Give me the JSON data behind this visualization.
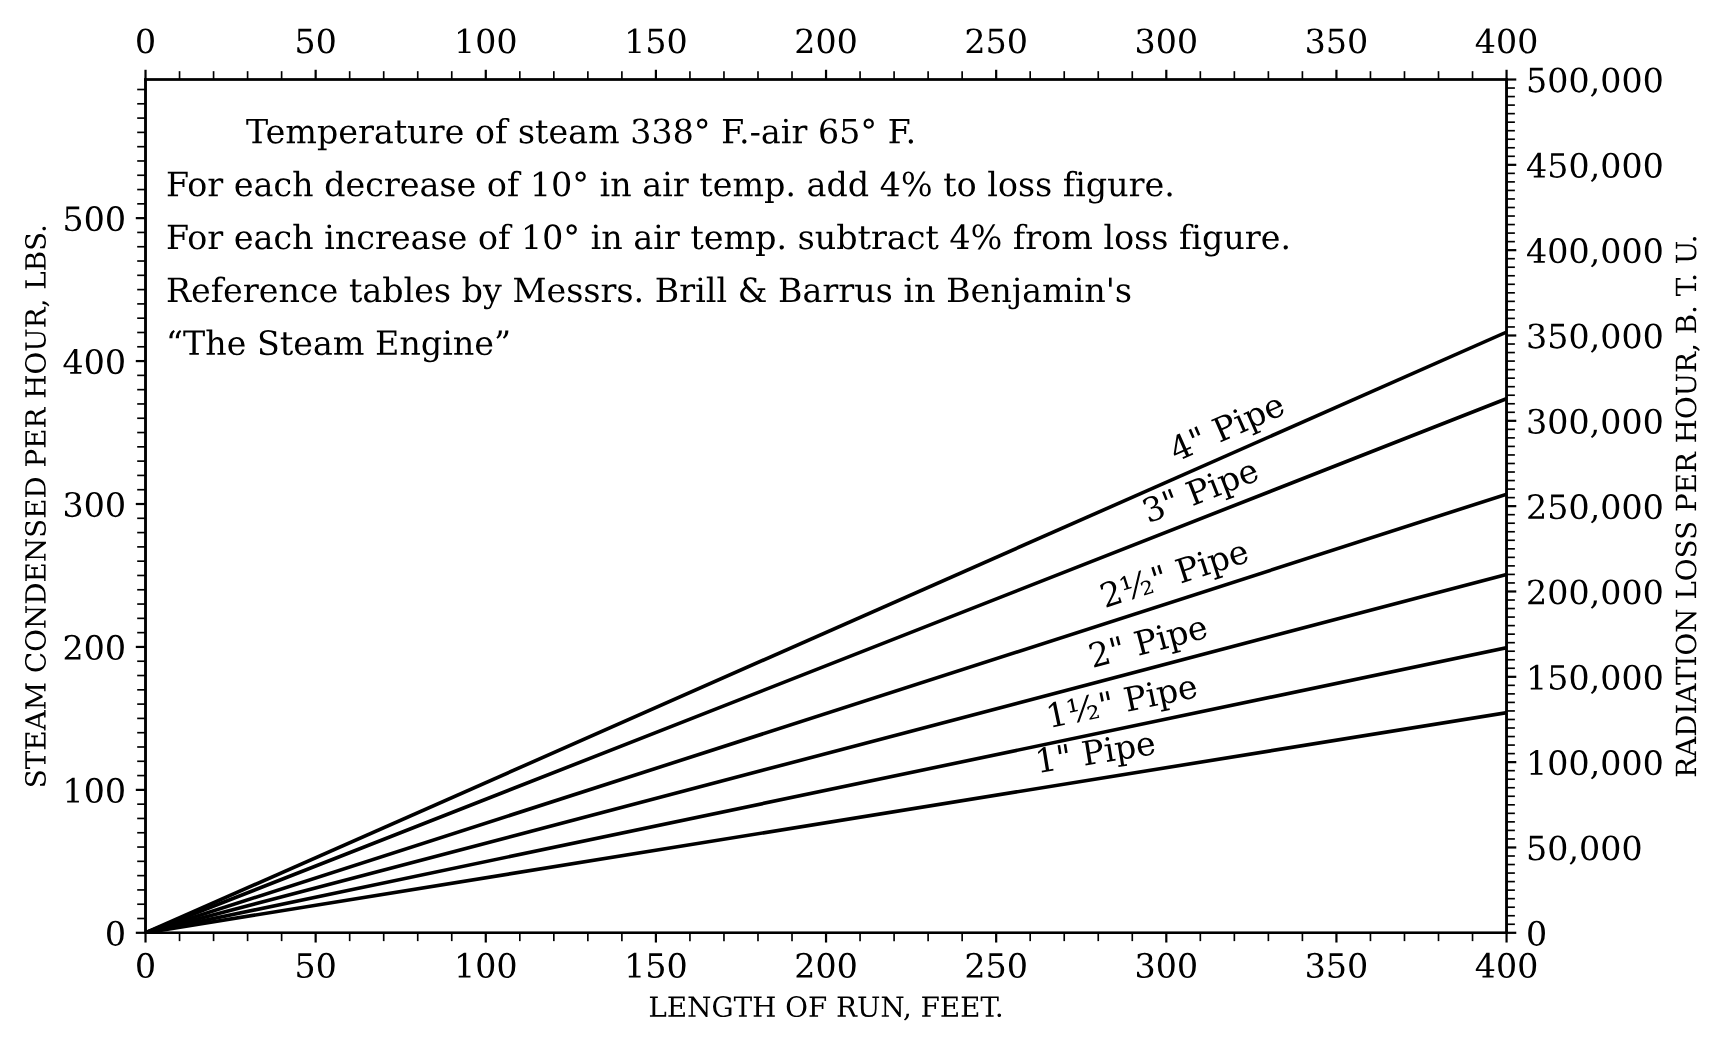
{
  "chart_data": {
    "type": "line",
    "xlabel": "LENGTH OF RUN, FEET.",
    "ylabel": "STEAM CONDENSED PER HOUR, LBS.",
    "y2label": "RADIATION LOSS PER HOUR, B. T. U.",
    "annotations": [
      "Temperature of steam 338° F.-air 65° F.",
      "For each decrease of 10° in air temp. add 4% to loss figure.",
      "For each increase of 10° in air temp. subtract 4% from loss figure.",
      "Reference tables by Messrs. Brill & Barrus in Benjamin's",
      "“The Steam Engine”"
    ],
    "xlim": [
      0,
      400
    ],
    "xticks": [
      0,
      50,
      100,
      150,
      200,
      250,
      300,
      350,
      400
    ],
    "x2lim": [
      0,
      400
    ],
    "x2ticks": [
      0,
      50,
      100,
      150,
      200,
      250,
      300,
      350,
      400
    ],
    "ylim": [
      0,
      597
    ],
    "yticks": [
      0,
      100,
      200,
      300,
      400,
      500
    ],
    "y2lim": [
      0,
      500000
    ],
    "y2ticks": [
      0,
      {
        "value": 50000,
        "label": "50,000"
      },
      {
        "value": 100000,
        "label": "100,000"
      },
      {
        "value": 150000,
        "label": "150,000"
      },
      {
        "value": 200000,
        "label": "200,000"
      },
      {
        "value": 250000,
        "label": "250,000"
      },
      {
        "value": 300000,
        "label": "300,000"
      },
      {
        "value": 350000,
        "label": "350,000"
      },
      {
        "value": 400000,
        "label": "400,000"
      },
      {
        "value": 450000,
        "label": "450,000"
      },
      {
        "value": 500000,
        "label": "500,000"
      }
    ],
    "x": [
      0,
      400
    ],
    "series": [
      {
        "name": "4\" Pipe",
        "color": "#000000",
        "axis": "y2",
        "values": [
          0,
          352000
        ]
      },
      {
        "name": "3\" Pipe",
        "color": "#000000",
        "axis": "y2",
        "values": [
          0,
          313000
        ]
      },
      {
        "name": "2½\" Pipe",
        "color": "#000000",
        "axis": "y2",
        "values": [
          0,
          257000
        ]
      },
      {
        "name": "2\" Pipe",
        "color": "#000000",
        "axis": "y2",
        "values": [
          0,
          210000
        ]
      },
      {
        "name": "1½\" Pipe",
        "color": "#000000",
        "axis": "y2",
        "values": [
          0,
          167000
        ]
      },
      {
        "name": "1\" Pipe",
        "color": "#000000",
        "axis": "y2",
        "values": [
          0,
          129000
        ]
      }
    ],
    "grid": false,
    "legend": false,
    "marker": "none",
    "line_style": "solid"
  }
}
